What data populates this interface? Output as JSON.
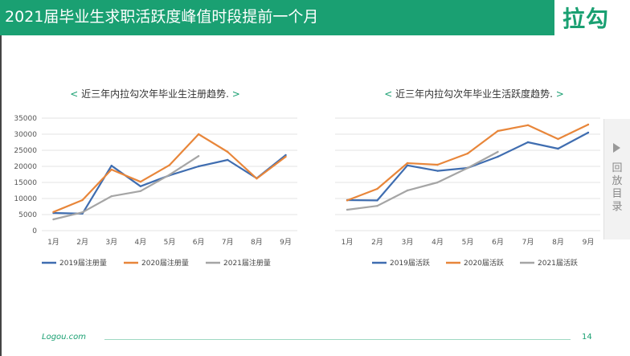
{
  "header": {
    "title": "2021届毕业生求职活跃度峰值时段提前一个月",
    "logo": "拉勾",
    "bar_color": "#1aa072"
  },
  "footer": {
    "brand": "Logou.com",
    "page_number": "14"
  },
  "side_panel": {
    "label": "回放目录",
    "icon": "play-arrow-icon"
  },
  "chart_data": [
    {
      "type": "line",
      "title": "近三年内拉勾次年毕业生注册趋势.",
      "title_prefix": "<",
      "title_suffix": ">",
      "categories": [
        "1月",
        "2月",
        "3月",
        "4月",
        "5月",
        "6月",
        "7月",
        "8月",
        "9月"
      ],
      "ylim": [
        0,
        35000
      ],
      "yticks": [
        0,
        5000,
        10000,
        15000,
        20000,
        25000,
        30000,
        35000
      ],
      "grid": true,
      "legend_position": "bottom",
      "series": [
        {
          "name": "2019届注册量",
          "color": "#3f6db0",
          "values": [
            5500,
            5300,
            20200,
            13800,
            17200,
            20000,
            22000,
            16300,
            23500
          ]
        },
        {
          "name": "2020届注册量",
          "color": "#e8863a",
          "values": [
            5800,
            9500,
            19000,
            15200,
            20400,
            30000,
            24500,
            16200,
            23000
          ]
        },
        {
          "name": "2021届注册量",
          "color": "#a5a5a5",
          "values": [
            3500,
            5700,
            10700,
            12300,
            17400,
            23200,
            null,
            null,
            null
          ]
        }
      ]
    },
    {
      "type": "line",
      "title": "近三年内拉勾次年毕业生活跃度趋势.",
      "title_prefix": "<",
      "title_suffix": ">",
      "categories": [
        "1月",
        "2月",
        "3月",
        "4月",
        "5月",
        "6月",
        "7月",
        "8月",
        "9月"
      ],
      "ylim": [
        0,
        35000
      ],
      "grid": true,
      "legend_position": "bottom",
      "series": [
        {
          "name": "2019届活跃",
          "color": "#3f6db0",
          "values": [
            9500,
            9400,
            20300,
            18600,
            19500,
            23000,
            27500,
            25500,
            30500
          ]
        },
        {
          "name": "2020届活跃",
          "color": "#e8863a",
          "values": [
            9400,
            13000,
            21000,
            20500,
            24000,
            31000,
            32800,
            28500,
            33000
          ]
        },
        {
          "name": "2021届活跃",
          "color": "#a5a5a5",
          "values": [
            6500,
            7700,
            12500,
            15000,
            19500,
            24500,
            null,
            null,
            null
          ]
        }
      ]
    }
  ]
}
